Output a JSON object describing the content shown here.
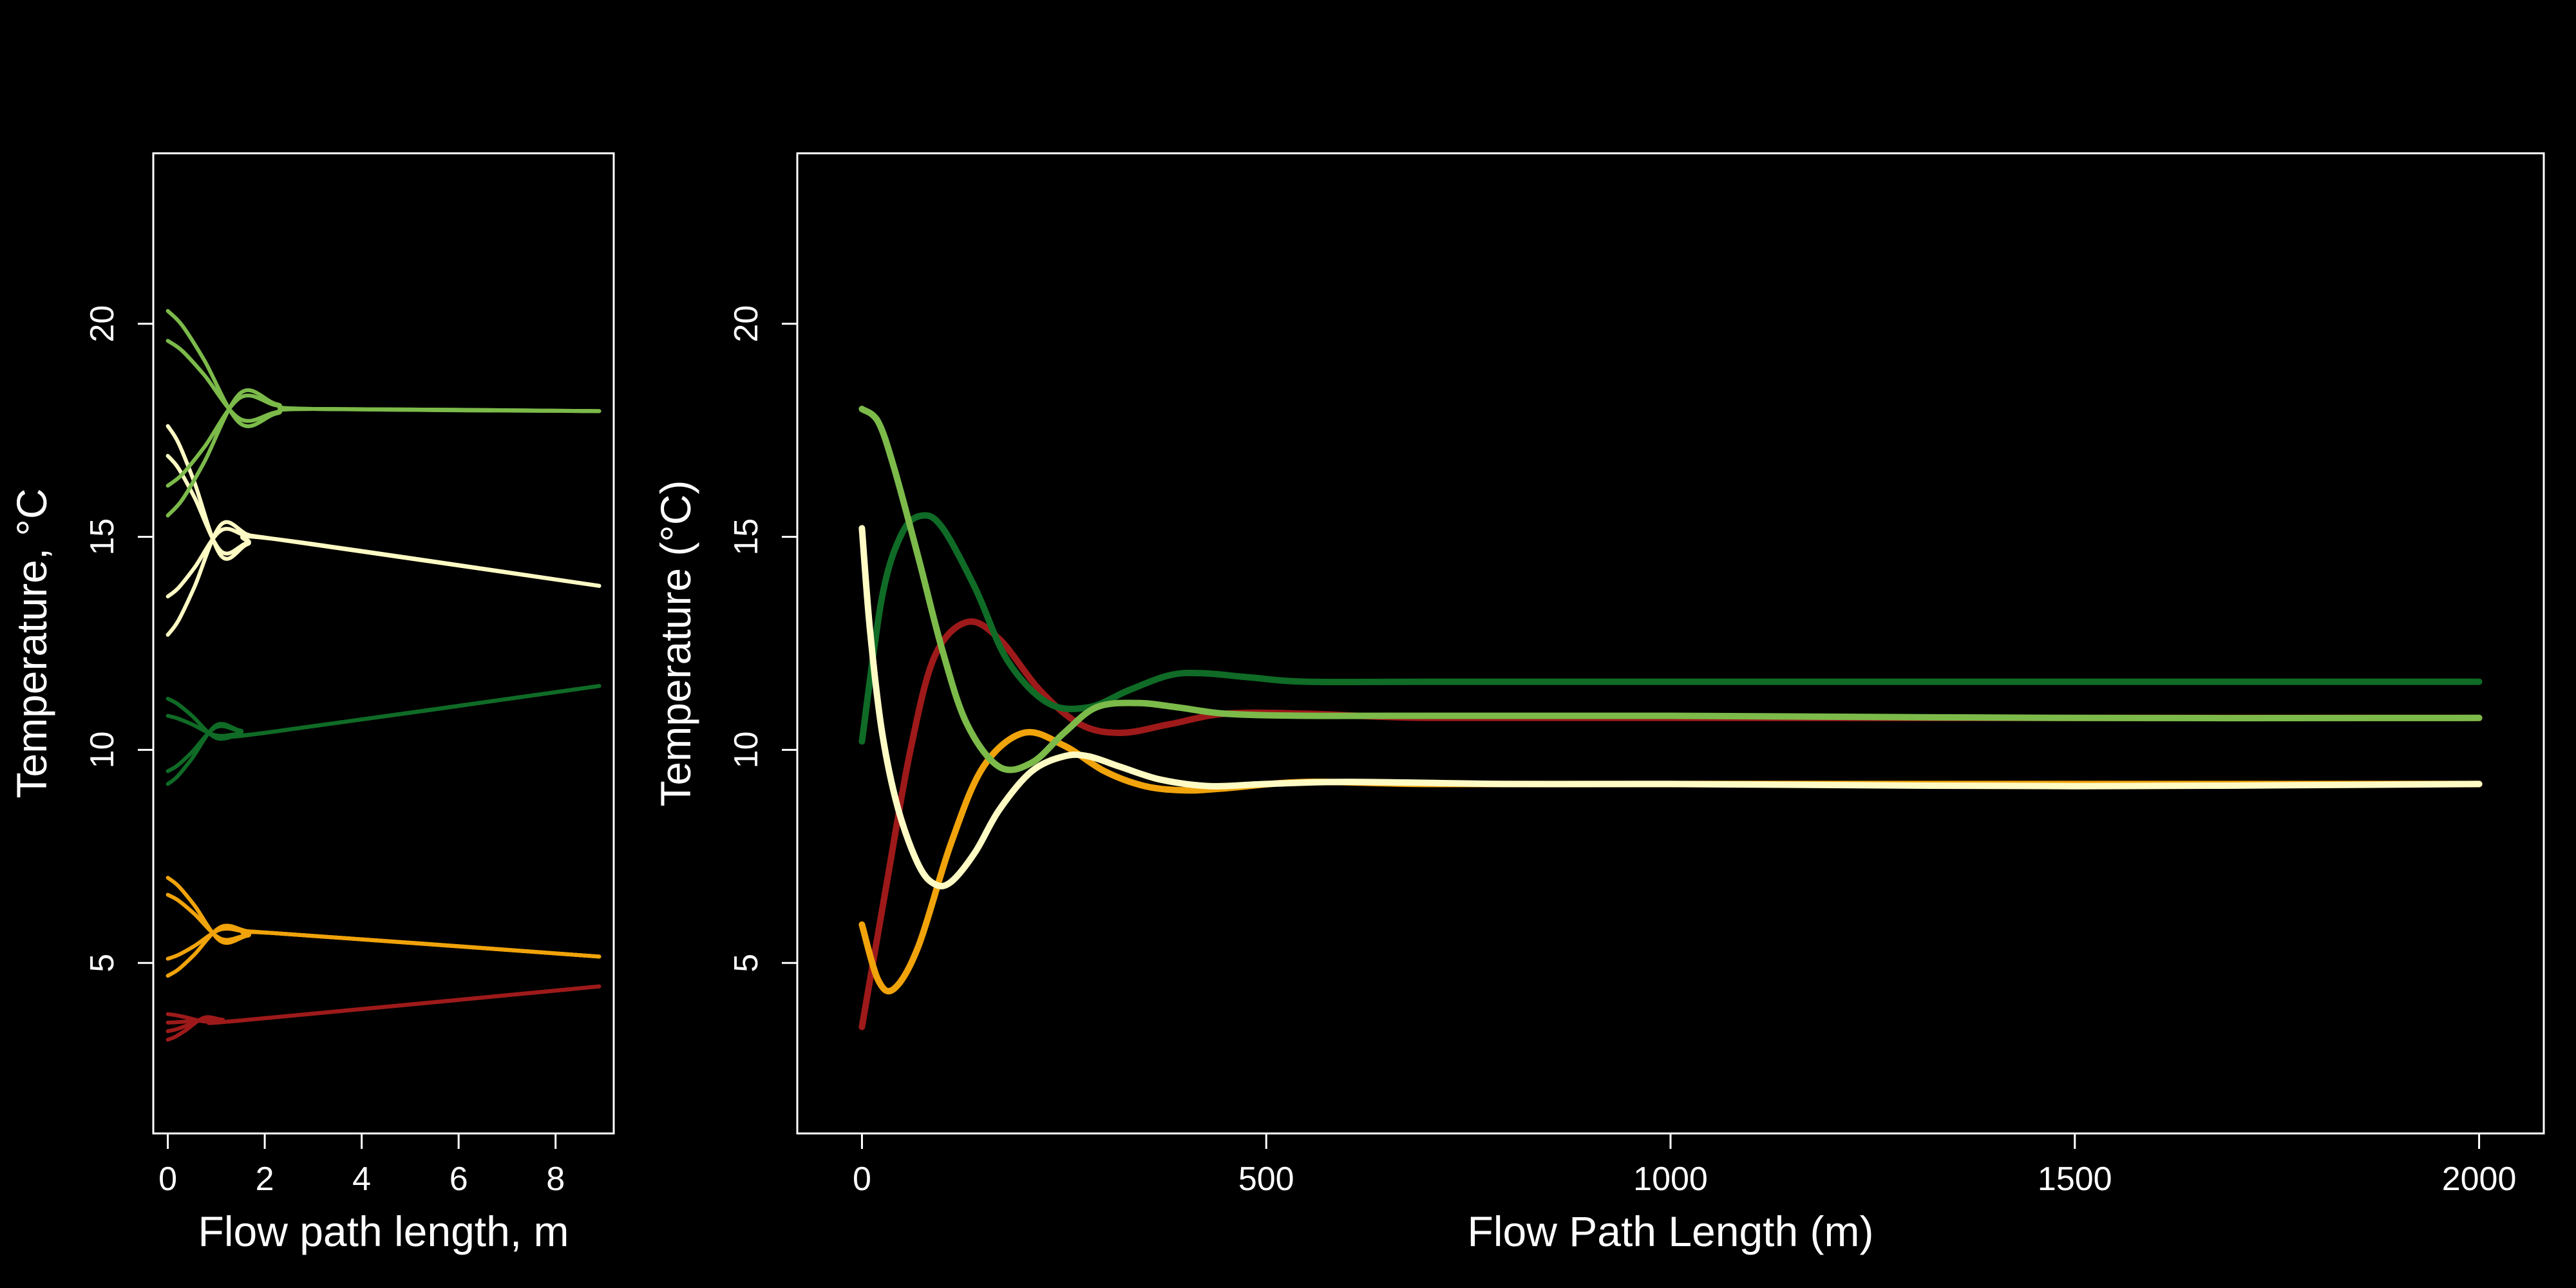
{
  "chart_data": [
    {
      "type": "line",
      "title": "",
      "xlabel": "Flow path length, m",
      "ylabel": "Temperature, °C",
      "xlim": [
        -0.3,
        9.2
      ],
      "ylim": [
        1,
        24
      ],
      "xticks": [
        "0",
        "2",
        "4",
        "6",
        "8"
      ],
      "yticks": [
        "5",
        "10",
        "15",
        "20"
      ],
      "grid": false,
      "legend": "none",
      "groups": [
        {
          "color": "#9e1a1a",
          "start": [
            3.8,
            3.2,
            3.6,
            3.4
          ],
          "x_settle": 1.5,
          "y_settle": 3.65,
          "x_end": 8.9,
          "y_end": 4.45
        },
        {
          "color": "#f0a30a",
          "start": [
            7.0,
            4.7,
            6.6,
            5.1
          ],
          "x_settle": 2.2,
          "y_settle": 5.7,
          "x_end": 8.9,
          "y_end": 5.15
        },
        {
          "color": "#0f6b26",
          "start": [
            11.2,
            9.2,
            10.8,
            9.5
          ],
          "x_settle": 2.0,
          "y_settle": 10.4,
          "x_end": 8.9,
          "y_end": 11.5
        },
        {
          "color": "#fffbc4",
          "start": [
            17.6,
            12.7,
            16.9,
            13.6
          ],
          "x_settle": 2.2,
          "y_settle": 14.95,
          "x_end": 8.9,
          "y_end": 13.85
        },
        {
          "color": "#7cba4a",
          "start": [
            20.3,
            15.5,
            19.6,
            16.2
          ],
          "x_settle": 3.0,
          "y_settle": 18.0,
          "x_end": 8.9,
          "y_end": 17.95
        }
      ]
    },
    {
      "type": "line",
      "title": "",
      "xlabel": "Flow Path Length (m)",
      "ylabel": "Temperature (°C)",
      "xlim": [
        -80,
        2080
      ],
      "ylim": [
        1,
        24
      ],
      "xticks": [
        "0",
        "500",
        "1000",
        "1500",
        "2000"
      ],
      "yticks": [
        "5",
        "10",
        "15",
        "20"
      ],
      "grid": false,
      "legend": "none",
      "series": [
        {
          "color": "#9e1a1a",
          "x": [
            0,
            30,
            60,
            90,
            130,
            170,
            220,
            270,
            320,
            380,
            450,
            550,
            700,
            1000,
            1500,
            2000
          ],
          "y": [
            3.5,
            6.8,
            10.0,
            12.2,
            13.0,
            12.6,
            11.4,
            10.6,
            10.4,
            10.6,
            10.85,
            10.85,
            10.75,
            10.75,
            10.75,
            10.75
          ]
        },
        {
          "color": "#f0a30a",
          "x": [
            0,
            20,
            40,
            70,
            110,
            150,
            200,
            250,
            300,
            350,
            400,
            450,
            550,
            700,
            1000,
            1500,
            2000
          ],
          "y": [
            5.9,
            4.6,
            4.4,
            5.4,
            7.8,
            9.6,
            10.4,
            10.1,
            9.5,
            9.15,
            9.05,
            9.1,
            9.25,
            9.2,
            9.2,
            9.2,
            9.2
          ]
        },
        {
          "color": "#0f6b26",
          "x": [
            0,
            25,
            50,
            75,
            100,
            140,
            180,
            230,
            280,
            330,
            380,
            420,
            480,
            550,
            700,
            1000,
            1500,
            2000
          ],
          "y": [
            10.2,
            13.6,
            15.1,
            15.5,
            15.2,
            13.8,
            12.1,
            11.1,
            11.0,
            11.4,
            11.75,
            11.8,
            11.7,
            11.6,
            11.6,
            11.6,
            11.6,
            11.6
          ]
        },
        {
          "color": "#7cba4a",
          "x": [
            0,
            20,
            40,
            70,
            100,
            130,
            170,
            210,
            250,
            290,
            340,
            390,
            450,
            550,
            700,
            1000,
            1500,
            2000
          ],
          "y": [
            18.0,
            17.7,
            16.6,
            14.5,
            12.3,
            10.6,
            9.6,
            9.7,
            10.4,
            11.0,
            11.1,
            11.0,
            10.85,
            10.8,
            10.8,
            10.8,
            10.75,
            10.75
          ]
        },
        {
          "color": "#fffbc4",
          "x": [
            0,
            10,
            25,
            45,
            70,
            90,
            110,
            140,
            170,
            210,
            250,
            280,
            320,
            370,
            430,
            500,
            600,
            800,
            1000,
            1500,
            2000
          ],
          "y": [
            15.2,
            12.8,
            10.4,
            8.6,
            7.3,
            6.85,
            6.9,
            7.6,
            8.6,
            9.5,
            9.85,
            9.85,
            9.6,
            9.3,
            9.15,
            9.2,
            9.25,
            9.2,
            9.2,
            9.15,
            9.2
          ]
        }
      ]
    }
  ]
}
